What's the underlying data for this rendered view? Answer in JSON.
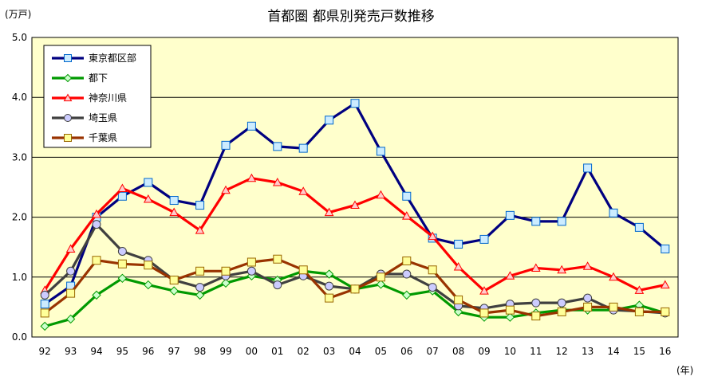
{
  "chart_data": {
    "type": "line",
    "title": "首都圏 都県別発売戸数推移",
    "ylabel": "(万戸)",
    "xlabel": "(年)",
    "categories": [
      "92",
      "93",
      "94",
      "95",
      "96",
      "97",
      "98",
      "99",
      "00",
      "01",
      "02",
      "03",
      "04",
      "05",
      "06",
      "07",
      "08",
      "09",
      "10",
      "11",
      "12",
      "13",
      "14",
      "15",
      "16"
    ],
    "ylim": [
      0,
      5
    ],
    "yticks": [
      "0.0",
      "1.0",
      "2.0",
      "3.0",
      "4.0",
      "5.0"
    ],
    "grid": true,
    "legend_position": "top-left",
    "plot_background": "#ffffcc",
    "series": [
      {
        "name": "東京都区部",
        "color": "#000080",
        "marker": "square-blue",
        "marker_fill": "#ccecff",
        "marker_edge": "#0066cc",
        "values": [
          0.55,
          0.85,
          2.0,
          2.35,
          2.58,
          2.28,
          2.2,
          3.2,
          3.52,
          3.18,
          3.15,
          3.62,
          3.9,
          3.1,
          2.35,
          1.65,
          1.55,
          1.63,
          2.03,
          1.93,
          1.93,
          2.82,
          2.07,
          1.83,
          1.47
        ]
      },
      {
        "name": "都下",
        "color": "#009900",
        "marker": "diamond-green",
        "marker_fill": "#ccffcc",
        "marker_edge": "#009900",
        "values": [
          0.18,
          0.3,
          0.7,
          0.98,
          0.87,
          0.77,
          0.7,
          0.9,
          1.02,
          0.95,
          1.1,
          1.05,
          0.8,
          0.88,
          0.7,
          0.77,
          0.42,
          0.33,
          0.33,
          0.4,
          0.45,
          0.45,
          0.45,
          0.53,
          0.4
        ]
      },
      {
        "name": "神奈川県",
        "color": "#ff0000",
        "marker": "triangle-red",
        "marker_fill": "#ffcccc",
        "marker_edge": "#ff0000",
        "values": [
          0.78,
          1.47,
          2.05,
          2.48,
          2.3,
          2.08,
          1.78,
          2.45,
          2.65,
          2.58,
          2.43,
          2.08,
          2.2,
          2.37,
          2.02,
          1.68,
          1.17,
          0.77,
          1.02,
          1.15,
          1.12,
          1.18,
          1.0,
          0.78,
          0.87
        ]
      },
      {
        "name": "埼玉県",
        "color": "#404040",
        "marker": "circle-lavender",
        "marker_fill": "#ccccff",
        "marker_edge": "#404040",
        "values": [
          0.7,
          1.1,
          1.88,
          1.43,
          1.28,
          0.95,
          0.83,
          1.02,
          1.1,
          0.87,
          1.02,
          0.85,
          0.8,
          1.05,
          1.05,
          0.83,
          0.52,
          0.48,
          0.55,
          0.57,
          0.57,
          0.65,
          0.45,
          0.43,
          0.4
        ]
      },
      {
        "name": "千葉県",
        "color": "#993300",
        "marker": "square-yellow",
        "marker_fill": "#ffff99",
        "marker_edge": "#996600",
        "values": [
          0.4,
          0.73,
          1.28,
          1.22,
          1.2,
          0.95,
          1.1,
          1.1,
          1.25,
          1.3,
          1.12,
          0.65,
          0.8,
          1.0,
          1.27,
          1.12,
          0.62,
          0.4,
          0.45,
          0.35,
          0.42,
          0.5,
          0.5,
          0.42,
          0.42
        ]
      }
    ]
  }
}
